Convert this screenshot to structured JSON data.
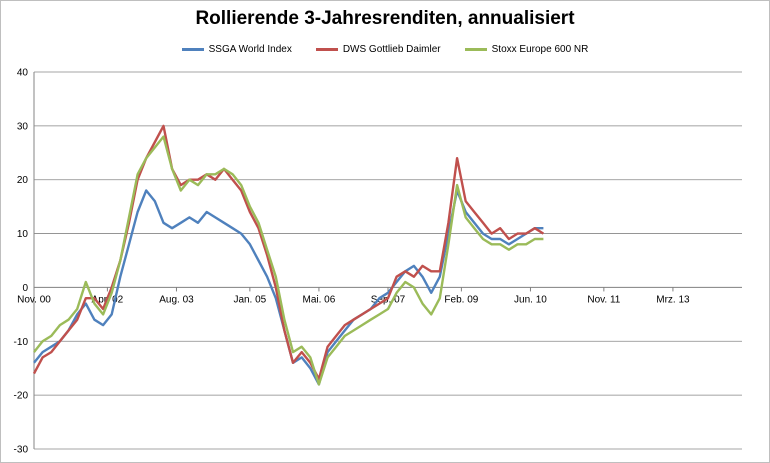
{
  "chart_data": {
    "type": "line",
    "title": "Rollierende 3-Jahresrenditen, annualisiert",
    "xlabel": "",
    "ylabel": "",
    "ylim": [
      -30,
      40
    ],
    "yticks": [
      -30,
      -20,
      -10,
      0,
      10,
      20,
      30,
      40
    ],
    "xlim": [
      "2000-11",
      "2014-07"
    ],
    "xticks": [
      {
        "label": "Nov. 00",
        "date": "2000-11"
      },
      {
        "label": "Apr. 02",
        "date": "2002-04"
      },
      {
        "label": "Aug. 03",
        "date": "2003-08"
      },
      {
        "label": "Jan. 05",
        "date": "2005-01"
      },
      {
        "label": "Mai. 06",
        "date": "2006-05"
      },
      {
        "label": "Sep. 07",
        "date": "2007-09"
      },
      {
        "label": "Feb. 09",
        "date": "2009-02"
      },
      {
        "label": "Jun. 10",
        "date": "2010-06"
      },
      {
        "label": "Nov. 11",
        "date": "2011-11"
      },
      {
        "label": "Mrz. 13",
        "date": "2013-03"
      }
    ],
    "grid": "horizontal",
    "legend_position": "top",
    "x": [
      "2000-11",
      "2001-01",
      "2001-03",
      "2001-05",
      "2001-07",
      "2001-09",
      "2001-11",
      "2002-01",
      "2002-03",
      "2002-05",
      "2002-07",
      "2002-09",
      "2002-11",
      "2003-01",
      "2003-03",
      "2003-05",
      "2003-07",
      "2003-09",
      "2003-11",
      "2004-01",
      "2004-03",
      "2004-05",
      "2004-07",
      "2004-09",
      "2004-11",
      "2005-01",
      "2005-03",
      "2005-05",
      "2005-07",
      "2005-09",
      "2005-11",
      "2006-01",
      "2006-03",
      "2006-05",
      "2006-07",
      "2006-09",
      "2006-11",
      "2007-01",
      "2007-03",
      "2007-05",
      "2007-07",
      "2007-09",
      "2007-11",
      "2008-01",
      "2008-03",
      "2008-05",
      "2008-07",
      "2008-09",
      "2008-11",
      "2009-01",
      "2009-03",
      "2009-05",
      "2009-07",
      "2009-09",
      "2009-11",
      "2010-01",
      "2010-03",
      "2010-05",
      "2010-07",
      "2010-09"
    ],
    "series": [
      {
        "name": "SSGA World Index",
        "color": "#4f81bd",
        "values": [
          -14,
          -12,
          -11,
          -10,
          -8,
          -5,
          -3,
          -6,
          -7,
          -5,
          2,
          8,
          14,
          18,
          16,
          12,
          11,
          12,
          13,
          12,
          14,
          13,
          12,
          11,
          10,
          8,
          5,
          2,
          -2,
          -8,
          -14,
          -13,
          -15,
          -18,
          -12,
          -10,
          -8,
          -6,
          -5,
          -4,
          -2,
          -1,
          1,
          3,
          4,
          2,
          -1,
          2,
          10,
          18,
          14,
          12,
          10,
          9,
          9,
          8,
          9,
          10,
          11,
          11
        ]
      },
      {
        "name": "DWS Gottlieb Daimler",
        "color": "#c0504d",
        "values": [
          -16,
          -13,
          -12,
          -10,
          -8,
          -6,
          -2,
          -2,
          -4,
          0,
          5,
          12,
          20,
          24,
          27,
          30,
          22,
          19,
          20,
          20,
          21,
          20,
          22,
          20,
          18,
          14,
          11,
          6,
          0,
          -8,
          -14,
          -12,
          -14,
          -17,
          -11,
          -9,
          -7,
          -6,
          -5,
          -4,
          -3,
          -2,
          2,
          3,
          2,
          4,
          3,
          3,
          12,
          24,
          16,
          14,
          12,
          10,
          11,
          9,
          10,
          10,
          11,
          10
        ]
      },
      {
        "name": "Stoxx Europe 600 NR",
        "color": "#9bbb59",
        "values": [
          -12,
          -10,
          -9,
          -7,
          -6,
          -4,
          1,
          -3,
          -5,
          -1,
          5,
          13,
          21,
          24,
          26,
          28,
          22,
          18,
          20,
          19,
          21,
          21,
          22,
          21,
          19,
          15,
          12,
          7,
          2,
          -6,
          -12,
          -11,
          -13,
          -18,
          -13,
          -11,
          -9,
          -8,
          -7,
          -6,
          -5,
          -4,
          -1,
          1,
          0,
          -3,
          -5,
          -2,
          8,
          19,
          13,
          11,
          9,
          8,
          8,
          7,
          8,
          8,
          9,
          9
        ]
      }
    ]
  }
}
